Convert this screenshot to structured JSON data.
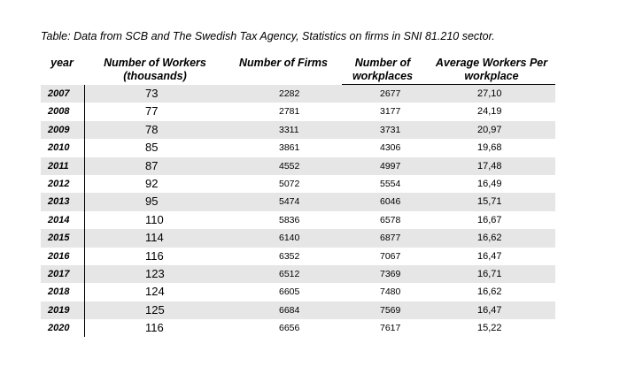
{
  "caption": "Table: Data from SCB and The Swedish Tax Agency, Statistics on firms in SNI 81.210 sector.",
  "columns": {
    "year": "year",
    "workers_line1": "Number of Workers",
    "workers_line2": "(thousands)",
    "firms": "Number of Firms",
    "places_line1": "Number of",
    "places_line2": "workplaces",
    "avg_line1": "Average Workers Per",
    "avg_line2": "workplace"
  },
  "rows": [
    {
      "year": "2007",
      "workers": "73",
      "firms": "2282",
      "workplaces": "2677",
      "avg": "27,10"
    },
    {
      "year": "2008",
      "workers": "77",
      "firms": "2781",
      "workplaces": "3177",
      "avg": "24,19"
    },
    {
      "year": "2009",
      "workers": "78",
      "firms": "3311",
      "workplaces": "3731",
      "avg": "20,97"
    },
    {
      "year": "2010",
      "workers": "85",
      "firms": "3861",
      "workplaces": "4306",
      "avg": "19,68"
    },
    {
      "year": "2011",
      "workers": "87",
      "firms": "4552",
      "workplaces": "4997",
      "avg": "17,48"
    },
    {
      "year": "2012",
      "workers": "92",
      "firms": "5072",
      "workplaces": "5554",
      "avg": "16,49"
    },
    {
      "year": "2013",
      "workers": "95",
      "firms": "5474",
      "workplaces": "6046",
      "avg": "15,71"
    },
    {
      "year": "2014",
      "workers": "110",
      "firms": "5836",
      "workplaces": "6578",
      "avg": "16,67"
    },
    {
      "year": "2015",
      "workers": "114",
      "firms": "6140",
      "workplaces": "6877",
      "avg": "16,62"
    },
    {
      "year": "2016",
      "workers": "116",
      "firms": "6352",
      "workplaces": "7067",
      "avg": "16,47"
    },
    {
      "year": "2017",
      "workers": "123",
      "firms": "6512",
      "workplaces": "7369",
      "avg": "16,71"
    },
    {
      "year": "2018",
      "workers": "124",
      "firms": "6605",
      "workplaces": "7480",
      "avg": "16,62"
    },
    {
      "year": "2019",
      "workers": "125",
      "firms": "6684",
      "workplaces": "7569",
      "avg": "16,47"
    },
    {
      "year": "2020",
      "workers": "116",
      "firms": "6656",
      "workplaces": "7617",
      "avg": "15,22"
    }
  ],
  "colors": {
    "shaded_row": "#e6e6e6",
    "text": "#000000"
  }
}
